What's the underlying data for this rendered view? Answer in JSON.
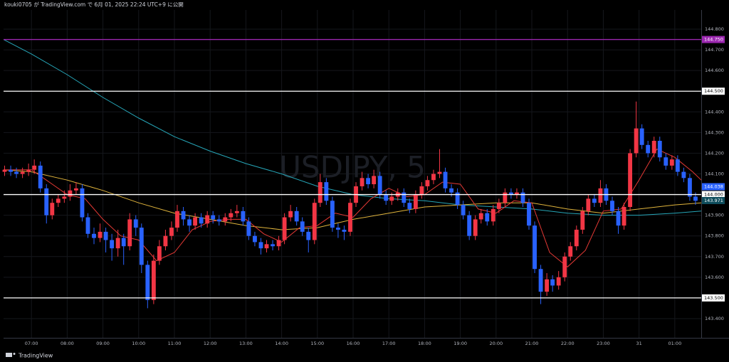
{
  "header": {
    "title": "kouki0705 が TradingView.com で 6月 01, 2025 22:24 UTC+9 に公開"
  },
  "footer": {
    "brand": "TradingView"
  },
  "chart_data": {
    "type": "candlestick",
    "watermark": "USDJPY, 5",
    "up_color": "#f23645",
    "down_color": "#2962ff",
    "grid": true,
    "xlim": [
      6.22,
      25.74
    ],
    "xticks": [
      {
        "value": 7,
        "label": "07:00"
      },
      {
        "value": 8,
        "label": "08:00"
      },
      {
        "value": 9,
        "label": "09:00"
      },
      {
        "value": 10,
        "label": "10:00"
      },
      {
        "value": 11,
        "label": "11:00"
      },
      {
        "value": 12,
        "label": "12:00"
      },
      {
        "value": 13,
        "label": "13:00"
      },
      {
        "value": 14,
        "label": "14:00"
      },
      {
        "value": 15,
        "label": "15:00"
      },
      {
        "value": 16,
        "label": "16:00"
      },
      {
        "value": 17,
        "label": "17:00"
      },
      {
        "value": 18,
        "label": "18:00"
      },
      {
        "value": 19,
        "label": "19:00"
      },
      {
        "value": 20,
        "label": "20:00"
      },
      {
        "value": 21,
        "label": "21:00"
      },
      {
        "value": 22,
        "label": "22:00"
      },
      {
        "value": 23,
        "label": "23:00"
      },
      {
        "value": 24,
        "label": "31"
      },
      {
        "value": 25,
        "label": "01:00"
      }
    ],
    "ylim": [
      143.307,
      144.893
    ],
    "yticks": [
      {
        "value": 144.8,
        "label": "144.800"
      },
      {
        "value": 144.7,
        "label": "144.700"
      },
      {
        "value": 144.6,
        "label": "144.600"
      },
      {
        "value": 144.4,
        "label": "144.400"
      },
      {
        "value": 144.3,
        "label": "144.300"
      },
      {
        "value": 144.2,
        "label": "144.200"
      },
      {
        "value": 144.1,
        "label": "144.100"
      },
      {
        "value": 143.9,
        "label": "143.900"
      },
      {
        "value": 143.8,
        "label": "143.800"
      },
      {
        "value": 143.7,
        "label": "143.700"
      },
      {
        "value": 143.6,
        "label": "143.600"
      },
      {
        "value": 143.4,
        "label": "143.400"
      }
    ],
    "levels": [
      {
        "value": 144.75,
        "label": "144.750",
        "color": "#9c27b0"
      },
      {
        "value": 144.5,
        "label": "144.500",
        "color": "#ffffff"
      },
      {
        "value": 144.0,
        "label": "144.000",
        "color": "#ffffff"
      },
      {
        "value": 143.5,
        "label": "143.500",
        "color": "#ffffff"
      }
    ],
    "markers": [
      {
        "value": 144.038,
        "label": "144.038",
        "color": "#2962ff"
      },
      {
        "value": 143.971,
        "label": "143.971",
        "color": "#0e4d5c"
      }
    ],
    "candles": [
      [
        6.25,
        144.11,
        144.14,
        144.09,
        144.12
      ],
      [
        6.42,
        144.12,
        144.14,
        144.09,
        144.11
      ],
      [
        6.58,
        144.11,
        144.13,
        144.08,
        144.1
      ],
      [
        6.75,
        144.1,
        144.13,
        144.08,
        144.11
      ],
      [
        6.92,
        144.11,
        144.15,
        144.09,
        144.12
      ],
      [
        7.08,
        144.12,
        144.17,
        144.1,
        144.14
      ],
      [
        7.25,
        144.14,
        144.16,
        144.01,
        144.03
      ],
      [
        7.42,
        144.03,
        144.05,
        143.86,
        143.9
      ],
      [
        7.58,
        143.9,
        143.98,
        143.88,
        143.96
      ],
      [
        7.75,
        143.96,
        144.0,
        143.94,
        143.98
      ],
      [
        7.92,
        143.98,
        144.02,
        143.96,
        143.99
      ],
      [
        8.08,
        143.99,
        144.05,
        143.97,
        144.02
      ],
      [
        8.25,
        144.02,
        144.06,
        144.0,
        144.03
      ],
      [
        8.42,
        144.03,
        144.05,
        143.87,
        143.89
      ],
      [
        8.58,
        143.89,
        143.91,
        143.79,
        143.81
      ],
      [
        8.75,
        143.81,
        143.84,
        143.76,
        143.79
      ],
      [
        8.92,
        143.79,
        143.86,
        143.77,
        143.82
      ],
      [
        9.08,
        143.82,
        143.84,
        143.72,
        143.78
      ],
      [
        9.25,
        143.78,
        143.81,
        143.68,
        143.74
      ],
      [
        9.42,
        143.74,
        143.83,
        143.7,
        143.79
      ],
      [
        9.58,
        143.79,
        143.81,
        143.66,
        143.75
      ],
      [
        9.75,
        143.75,
        143.91,
        143.73,
        143.88
      ],
      [
        9.92,
        143.88,
        143.9,
        143.8,
        143.84
      ],
      [
        10.08,
        143.84,
        143.86,
        143.62,
        143.66
      ],
      [
        10.25,
        143.66,
        143.68,
        143.45,
        143.49
      ],
      [
        10.42,
        143.49,
        143.71,
        143.47,
        143.68
      ],
      [
        10.58,
        143.68,
        143.78,
        143.66,
        143.75
      ],
      [
        10.75,
        143.75,
        143.83,
        143.73,
        143.8
      ],
      [
        10.92,
        143.8,
        143.87,
        143.78,
        143.84
      ],
      [
        11.08,
        143.84,
        143.95,
        143.82,
        143.92
      ],
      [
        11.25,
        143.92,
        143.94,
        143.85,
        143.88
      ],
      [
        11.42,
        143.88,
        143.9,
        143.82,
        143.85
      ],
      [
        11.58,
        143.85,
        143.91,
        143.83,
        143.89
      ],
      [
        11.75,
        143.89,
        143.91,
        143.84,
        143.86
      ],
      [
        11.92,
        143.86,
        143.92,
        143.84,
        143.9
      ],
      [
        12.08,
        143.9,
        143.92,
        143.86,
        143.88
      ],
      [
        12.25,
        143.88,
        143.9,
        143.85,
        143.87
      ],
      [
        12.42,
        143.87,
        143.91,
        143.85,
        143.89
      ],
      [
        12.58,
        143.89,
        143.93,
        143.87,
        143.91
      ],
      [
        12.75,
        143.91,
        143.95,
        143.89,
        143.92
      ],
      [
        12.92,
        143.92,
        143.94,
        143.85,
        143.87
      ],
      [
        13.08,
        143.87,
        143.89,
        143.78,
        143.8
      ],
      [
        13.25,
        143.8,
        143.82,
        143.75,
        143.77
      ],
      [
        13.42,
        143.77,
        143.79,
        143.71,
        143.74
      ],
      [
        13.58,
        143.74,
        143.78,
        143.72,
        143.76
      ],
      [
        13.75,
        143.76,
        143.78,
        143.73,
        143.75
      ],
      [
        13.92,
        143.75,
        143.8,
        143.73,
        143.78
      ],
      [
        14.08,
        143.78,
        143.91,
        143.76,
        143.89
      ],
      [
        14.25,
        143.89,
        143.95,
        143.87,
        143.92
      ],
      [
        14.42,
        143.92,
        143.94,
        143.85,
        143.87
      ],
      [
        14.58,
        143.87,
        143.89,
        143.8,
        143.82
      ],
      [
        14.75,
        143.82,
        143.84,
        143.72,
        143.78
      ],
      [
        14.92,
        143.78,
        143.98,
        143.76,
        143.96
      ],
      [
        15.08,
        143.96,
        144.1,
        143.94,
        144.06
      ],
      [
        15.25,
        144.06,
        144.08,
        143.95,
        143.97
      ],
      [
        15.42,
        143.97,
        143.99,
        143.82,
        143.84
      ],
      [
        15.58,
        143.84,
        143.86,
        143.79,
        143.83
      ],
      [
        15.75,
        143.83,
        143.85,
        143.78,
        143.82
      ],
      [
        15.92,
        143.82,
        143.98,
        143.8,
        143.96
      ],
      [
        16.08,
        143.96,
        144.06,
        143.94,
        144.04
      ],
      [
        16.25,
        144.04,
        144.11,
        144.02,
        144.08
      ],
      [
        16.42,
        144.08,
        144.1,
        144.03,
        144.05
      ],
      [
        16.58,
        144.05,
        144.12,
        144.03,
        144.09
      ],
      [
        16.75,
        144.09,
        144.11,
        143.98,
        144.0
      ],
      [
        16.92,
        144.0,
        144.02,
        143.95,
        143.97
      ],
      [
        17.08,
        143.97,
        144.01,
        143.95,
        143.99
      ],
      [
        17.25,
        143.99,
        144.03,
        143.97,
        144.01
      ],
      [
        17.42,
        144.01,
        144.03,
        143.94,
        143.96
      ],
      [
        17.58,
        143.96,
        143.98,
        143.91,
        143.93
      ],
      [
        17.75,
        143.93,
        144.02,
        143.91,
        144.0
      ],
      [
        17.92,
        144.0,
        144.06,
        143.98,
        144.04
      ],
      [
        18.08,
        144.04,
        144.09,
        144.02,
        144.07
      ],
      [
        18.25,
        144.07,
        144.12,
        144.05,
        144.1
      ],
      [
        18.42,
        144.1,
        144.22,
        144.08,
        144.11
      ],
      [
        18.58,
        144.11,
        144.13,
        144.01,
        144.03
      ],
      [
        18.75,
        144.03,
        144.05,
        143.99,
        144.01
      ],
      [
        18.92,
        144.01,
        144.03,
        143.93,
        143.95
      ],
      [
        19.08,
        143.95,
        143.97,
        143.88,
        143.9
      ],
      [
        19.25,
        143.9,
        143.92,
        143.78,
        143.8
      ],
      [
        19.42,
        143.8,
        143.9,
        143.78,
        143.88
      ],
      [
        19.58,
        143.88,
        143.93,
        143.86,
        143.91
      ],
      [
        19.75,
        143.91,
        143.93,
        143.85,
        143.87
      ],
      [
        19.92,
        143.87,
        143.95,
        143.85,
        143.93
      ],
      [
        20.08,
        143.93,
        143.98,
        143.91,
        143.96
      ],
      [
        20.25,
        143.96,
        144.03,
        143.94,
        144.01
      ],
      [
        20.42,
        144.01,
        144.03,
        143.98,
        144.0
      ],
      [
        20.58,
        144.0,
        144.03,
        143.98,
        144.01
      ],
      [
        20.75,
        144.01,
        144.03,
        143.94,
        143.96
      ],
      [
        20.92,
        143.96,
        143.98,
        143.83,
        143.85
      ],
      [
        21.08,
        143.85,
        143.87,
        143.62,
        143.64
      ],
      [
        21.25,
        143.64,
        143.66,
        143.47,
        143.53
      ],
      [
        21.42,
        143.53,
        143.62,
        143.51,
        143.59
      ],
      [
        21.58,
        143.59,
        143.61,
        143.53,
        143.56
      ],
      [
        21.75,
        143.56,
        143.63,
        143.54,
        143.6
      ],
      [
        21.92,
        143.6,
        143.72,
        143.58,
        143.7
      ],
      [
        22.08,
        143.7,
        143.77,
        143.68,
        143.75
      ],
      [
        22.25,
        143.75,
        143.85,
        143.73,
        143.83
      ],
      [
        22.42,
        143.83,
        143.94,
        143.81,
        143.92
      ],
      [
        22.58,
        143.92,
        144.0,
        143.9,
        143.98
      ],
      [
        22.75,
        143.98,
        144.0,
        143.94,
        143.96
      ],
      [
        22.92,
        143.96,
        144.07,
        143.94,
        144.03
      ],
      [
        23.08,
        144.03,
        144.05,
        143.95,
        143.97
      ],
      [
        23.25,
        143.97,
        143.99,
        143.9,
        143.92
      ],
      [
        23.42,
        143.92,
        143.94,
        143.81,
        143.85
      ],
      [
        23.58,
        143.85,
        143.96,
        143.83,
        143.94
      ],
      [
        23.75,
        143.94,
        144.22,
        143.92,
        144.2
      ],
      [
        23.92,
        144.2,
        144.45,
        144.18,
        144.32
      ],
      [
        24.08,
        144.32,
        144.34,
        144.22,
        144.24
      ],
      [
        24.25,
        144.24,
        144.26,
        144.18,
        144.2
      ],
      [
        24.42,
        144.2,
        144.28,
        144.18,
        144.26
      ],
      [
        24.58,
        144.26,
        144.28,
        144.16,
        144.18
      ],
      [
        24.75,
        144.18,
        144.2,
        144.12,
        144.14
      ],
      [
        24.92,
        144.14,
        144.19,
        144.12,
        144.17
      ],
      [
        25.08,
        144.17,
        144.19,
        144.09,
        144.11
      ],
      [
        25.25,
        144.11,
        144.13,
        144.06,
        144.08
      ],
      [
        25.42,
        144.08,
        144.1,
        143.97,
        143.99
      ],
      [
        25.58,
        143.99,
        144.01,
        143.95,
        143.97
      ]
    ],
    "lines": [
      {
        "color": "#26a6b8",
        "x": [
          6.22,
          7,
          8,
          9,
          10,
          11,
          12,
          13,
          14,
          15,
          16,
          17,
          18,
          19,
          20,
          21,
          22,
          23,
          24,
          25,
          25.74
        ],
        "values": [
          144.75,
          144.68,
          144.58,
          144.47,
          144.37,
          144.28,
          144.21,
          144.15,
          144.1,
          144.04,
          144.0,
          143.98,
          143.97,
          143.95,
          143.94,
          143.93,
          143.91,
          143.9,
          143.9,
          143.91,
          143.92
        ]
      },
      {
        "color": "#e0b43c",
        "x": [
          6.22,
          7,
          8,
          9,
          10,
          11,
          12,
          13,
          14,
          15,
          16,
          17,
          18,
          19,
          20,
          21,
          22,
          23,
          24,
          25,
          25.74
        ],
        "values": [
          144.12,
          144.11,
          144.07,
          144.02,
          143.96,
          143.91,
          143.88,
          143.85,
          143.83,
          143.84,
          143.88,
          143.91,
          143.94,
          143.95,
          143.96,
          143.96,
          143.93,
          143.91,
          143.93,
          143.95,
          143.96
        ]
      },
      {
        "color": "#e53935",
        "x": [
          6.22,
          6.5,
          7,
          7.5,
          8,
          8.5,
          9,
          9.5,
          10,
          10.5,
          11,
          11.5,
          12,
          12.5,
          13,
          13.5,
          14,
          14.5,
          15,
          15.5,
          16,
          16.5,
          17,
          17.5,
          18,
          18.5,
          19,
          19.5,
          20,
          20.5,
          21,
          21.5,
          22,
          22.5,
          23,
          23.5,
          24,
          24.5,
          25,
          25.5,
          25.74
        ],
        "values": [
          144.12,
          144.12,
          144.12,
          144.06,
          144.0,
          143.98,
          143.88,
          143.8,
          143.78,
          143.68,
          143.72,
          143.83,
          143.87,
          143.88,
          143.88,
          143.81,
          143.77,
          143.84,
          143.85,
          143.91,
          143.89,
          143.98,
          144.03,
          143.99,
          144.0,
          144.06,
          144.05,
          143.93,
          143.91,
          143.97,
          143.96,
          143.72,
          143.65,
          143.73,
          143.92,
          143.93,
          144.07,
          144.22,
          144.18,
          144.11,
          144.07
        ]
      }
    ]
  }
}
